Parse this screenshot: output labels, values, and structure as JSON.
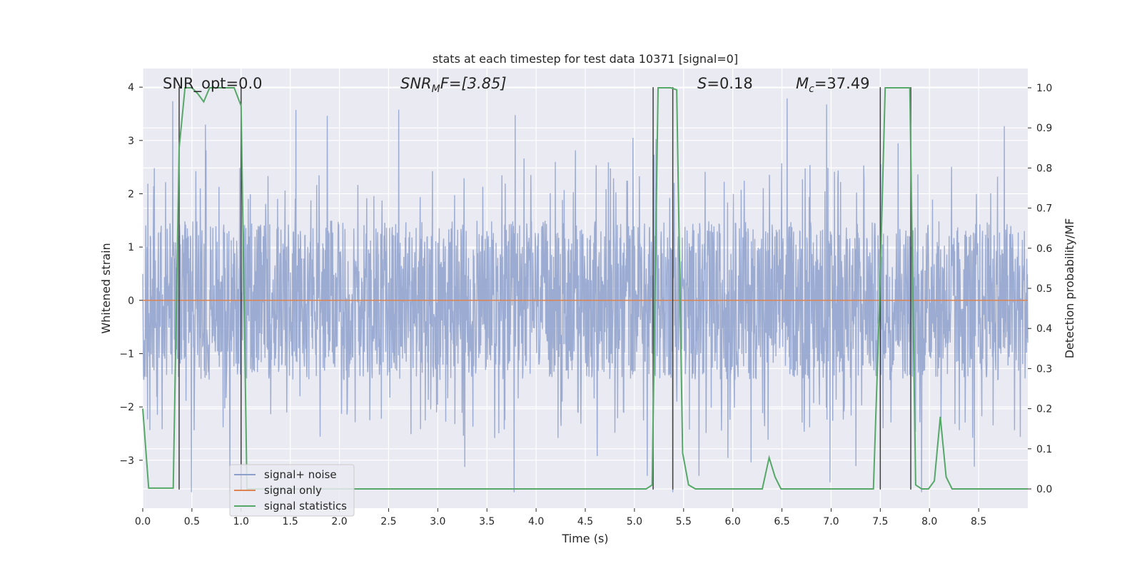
{
  "chart_data": {
    "type": "line",
    "title": "stats at each timestep for test data 10371 [signal=0]",
    "xlabel": "Time (s)",
    "ylabel": "Whitened strain",
    "ylabel_right": "Detection probability/MF",
    "xlim": [
      0.0,
      9.0
    ],
    "ylim": [
      -3.9,
      4.35
    ],
    "ylim_right": [
      -0.048,
      1.048
    ],
    "xticks": [
      "0.0",
      "0.5",
      "1.0",
      "1.5",
      "2.0",
      "2.5",
      "3.0",
      "3.5",
      "4.0",
      "4.5",
      "5.0",
      "5.5",
      "6.0",
      "6.5",
      "7.0",
      "7.5",
      "8.0",
      "8.5"
    ],
    "yticks": [
      "−3",
      "−2",
      "−1",
      "0",
      "1",
      "2",
      "3",
      "4"
    ],
    "yticks_right": [
      "0.0",
      "0.1",
      "0.2",
      "0.3",
      "0.4",
      "0.5",
      "0.6",
      "0.7",
      "0.8",
      "0.9",
      "1.0"
    ],
    "grid": true,
    "legend_position": "lower-left",
    "annotations": {
      "snr_opt": "SNR_opt=0.0",
      "snr_mf_main": "SNR",
      "snr_mf_sub": "M",
      "snr_mf_rest": "F=[3.85]",
      "s_main": "S",
      "s_rest": "=0.18",
      "mc_main": "M",
      "mc_sub": "c",
      "mc_rest": "=37.49"
    },
    "series": [
      {
        "name": "signal+ noise",
        "color": "#8da0cb",
        "kind": "noise",
        "amplitude_typical": 1.3,
        "peak_max": 4.0,
        "peak_min": -3.6
      },
      {
        "name": "signal only",
        "color": "#dd8452",
        "x": [
          0.0,
          9.0
        ],
        "y": [
          0.0,
          0.0
        ]
      },
      {
        "name": "signal statistics",
        "color": "#55a868",
        "axis": "right",
        "x": [
          0.0,
          0.06,
          0.31,
          0.37,
          0.43,
          0.5,
          0.56,
          0.62,
          0.68,
          0.75,
          0.87,
          0.93,
          1.0,
          1.06,
          5.12,
          5.18,
          5.24,
          5.3,
          5.37,
          5.43,
          5.49,
          5.55,
          5.62,
          6.3,
          6.37,
          6.43,
          6.49,
          7.43,
          7.49,
          7.55,
          7.62,
          7.68,
          7.74,
          7.8,
          7.86,
          7.92,
          7.99,
          8.05,
          8.11,
          8.17,
          8.23,
          8.3,
          8.36,
          9.0
        ],
        "y": [
          0.2,
          0.002,
          0.002,
          0.85,
          1.0,
          1.0,
          0.985,
          0.965,
          1.0,
          1.0,
          1.0,
          1.0,
          0.955,
          0.0,
          0.0,
          0.01,
          1.0,
          1.0,
          1.0,
          0.995,
          0.09,
          0.01,
          0.0,
          0.0,
          0.078,
          0.03,
          0.0,
          0.0,
          0.45,
          1.0,
          1.0,
          1.0,
          1.0,
          1.0,
          0.01,
          0.0,
          0.0,
          0.02,
          0.18,
          0.03,
          0.0,
          0.0,
          0.0,
          0.0
        ]
      }
    ],
    "vertical_lines": {
      "color": "#404040",
      "x": [
        0.37,
        1.0,
        5.19,
        5.39,
        7.5,
        7.81
      ],
      "y_range": [
        -3.55,
        4.0
      ]
    }
  }
}
